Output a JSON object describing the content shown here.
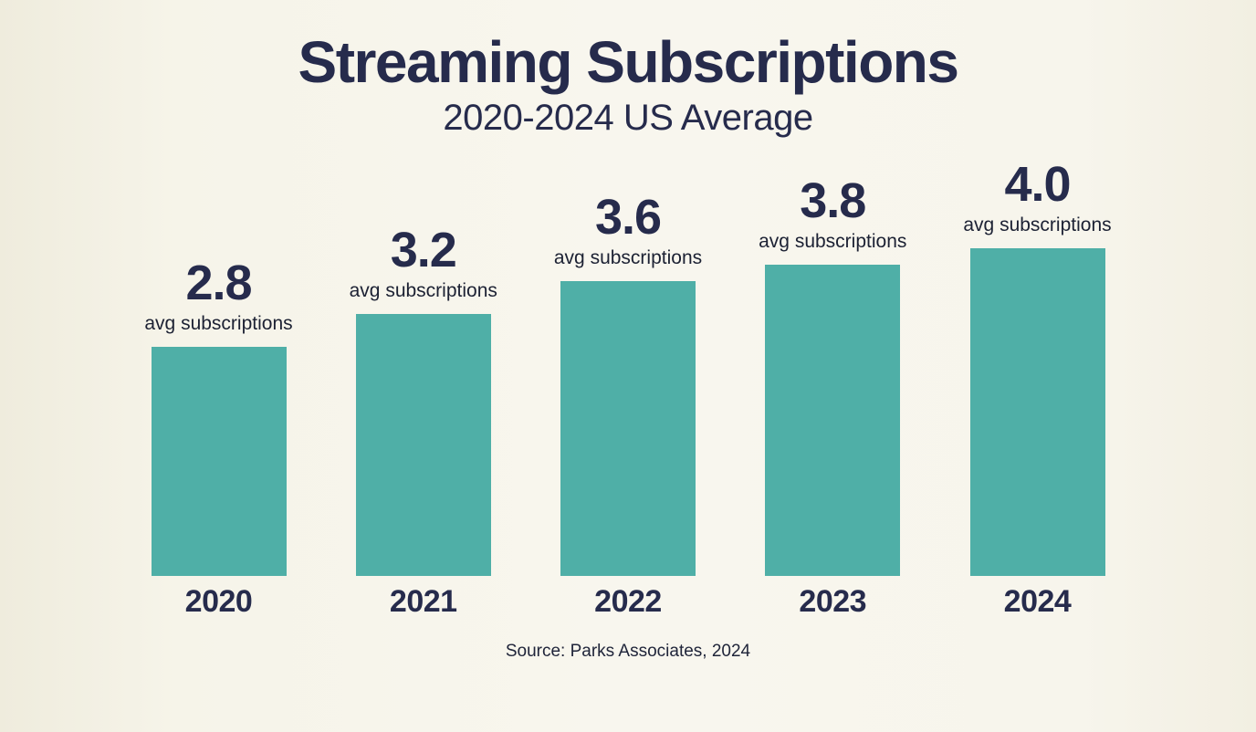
{
  "page": {
    "title": "Streaming Subscriptions",
    "subtitle": "2020-2024 US Average",
    "source": "Source: Parks Associates, 2024"
  },
  "colors": {
    "background": "#f6f3e8",
    "bar": "#4fafa7",
    "text": "#262b4c"
  },
  "chart_data": {
    "type": "bar",
    "title": "Streaming Subscriptions",
    "subtitle": "2020-2024 US Average",
    "categories": [
      "2020",
      "2021",
      "2022",
      "2023",
      "2024"
    ],
    "values": [
      2.8,
      3.2,
      3.6,
      3.8,
      4.0
    ],
    "value_sublabel": "avg subscriptions",
    "value_decimals": 1,
    "ylabel": "",
    "xlabel": "",
    "ylim": [
      0,
      4.4
    ],
    "grid": false,
    "legend": false,
    "bar_color": "#4fafa7",
    "source": "Source: Parks Associates, 2024",
    "pixels_per_unit": 89.7
  }
}
